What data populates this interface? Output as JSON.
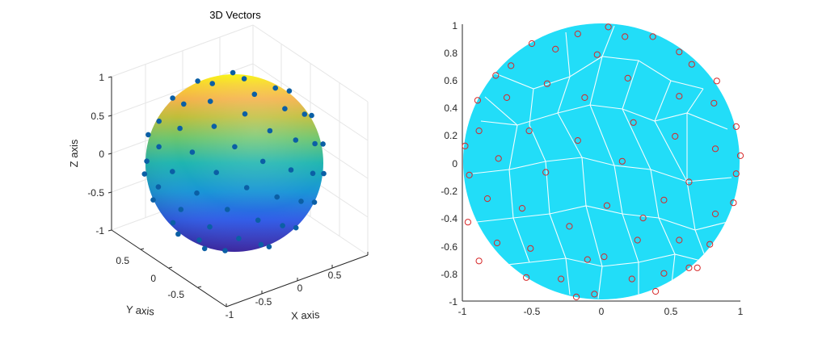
{
  "chart_data": [
    {
      "type": "scatter3d",
      "title": "3D Vectors",
      "xlabel": "X axis",
      "ylabel": "Y axis",
      "zlabel": "Z axis",
      "xlim": [
        -1,
        1
      ],
      "ylim": [
        -1,
        1
      ],
      "zlim": [
        -1,
        1
      ],
      "x_ticks": [
        "-1",
        "-0.5",
        "0",
        "0.5"
      ],
      "y_ticks": [
        "-0.5",
        "0",
        "0.5"
      ],
      "z_ticks": [
        "-1",
        "-0.5",
        "0",
        "0.5",
        "1"
      ],
      "surface": "unit sphere",
      "colormap": "parula",
      "grid": true,
      "marker_color": "#0b5fa5",
      "point_count": 100
    },
    {
      "type": "voronoi-sphere-projection",
      "xlim": [
        -1,
        1
      ],
      "ylim": [
        -1,
        1
      ],
      "x_ticks": [
        "-1",
        "-0.5",
        "0",
        "0.5",
        "1"
      ],
      "y_ticks": [
        "-1",
        "-0.8",
        "-0.6",
        "-0.4",
        "-0.2",
        "0",
        "0.2",
        "0.4",
        "0.6",
        "0.8",
        "1"
      ],
      "fill_color": "#1ee0fa",
      "edge_color": "#ffffff",
      "marker_color": "#d62728",
      "points": [
        [
          0.05,
          0.98
        ],
        [
          -0.17,
          0.93
        ],
        [
          0.17,
          0.91
        ],
        [
          -0.5,
          0.86
        ],
        [
          0.37,
          0.91
        ],
        [
          -0.33,
          0.82
        ],
        [
          0.56,
          0.8
        ],
        [
          -0.03,
          0.78
        ],
        [
          0.65,
          0.71
        ],
        [
          -0.65,
          0.7
        ],
        [
          0.19,
          0.61
        ],
        [
          -0.39,
          0.57
        ],
        [
          -0.76,
          0.63
        ],
        [
          0.83,
          0.59
        ],
        [
          -0.68,
          0.47
        ],
        [
          -0.12,
          0.47
        ],
        [
          0.56,
          0.48
        ],
        [
          0.81,
          0.43
        ],
        [
          -0.89,
          0.45
        ],
        [
          0.23,
          0.29
        ],
        [
          -0.52,
          0.23
        ],
        [
          -0.88,
          0.23
        ],
        [
          -0.17,
          0.16
        ],
        [
          0.53,
          0.19
        ],
        [
          0.97,
          0.26
        ],
        [
          -0.98,
          0.12
        ],
        [
          0.82,
          0.1
        ],
        [
          0.15,
          0.01
        ],
        [
          -0.74,
          0.03
        ],
        [
          1.0,
          0.05
        ],
        [
          -0.4,
          -0.07
        ],
        [
          0.63,
          -0.14
        ],
        [
          -0.95,
          -0.09
        ],
        [
          0.97,
          -0.08
        ],
        [
          0.04,
          -0.31
        ],
        [
          0.45,
          -0.27
        ],
        [
          -0.82,
          -0.26
        ],
        [
          -0.57,
          -0.33
        ],
        [
          0.82,
          -0.37
        ],
        [
          -0.96,
          -0.43
        ],
        [
          -0.23,
          -0.46
        ],
        [
          0.95,
          -0.29
        ],
        [
          0.26,
          -0.56
        ],
        [
          -0.75,
          -0.58
        ],
        [
          0.56,
          -0.56
        ],
        [
          -0.51,
          -0.62
        ],
        [
          0.78,
          -0.59
        ],
        [
          0.02,
          -0.68
        ],
        [
          0.63,
          -0.76
        ],
        [
          -0.88,
          -0.71
        ],
        [
          -0.29,
          -0.84
        ],
        [
          0.22,
          -0.84
        ],
        [
          0.39,
          -0.93
        ],
        [
          -0.54,
          -0.83
        ],
        [
          0.69,
          -0.76
        ],
        [
          -0.05,
          -0.95
        ],
        [
          -0.18,
          -0.97
        ],
        [
          0.45,
          -0.8
        ],
        [
          -0.1,
          -0.7
        ],
        [
          0.3,
          -0.4
        ]
      ]
    }
  ]
}
